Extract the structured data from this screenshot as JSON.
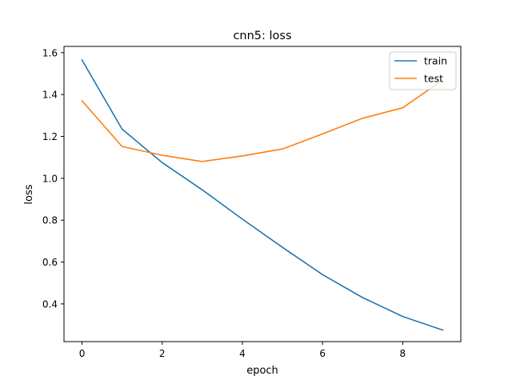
{
  "chart_data": {
    "type": "line",
    "title": "cnn5: loss",
    "xlabel": "epoch",
    "ylabel": "loss",
    "xlim": [
      -0.45,
      9.45
    ],
    "ylim": [
      0.22,
      1.63
    ],
    "xticks": [
      0,
      2,
      4,
      6,
      8
    ],
    "xtick_labels": [
      "0",
      "2",
      "4",
      "6",
      "8"
    ],
    "yticks": [
      0.4,
      0.6,
      0.8,
      1.0,
      1.2,
      1.4,
      1.6
    ],
    "ytick_labels": [
      "0.4",
      "0.6",
      "0.8",
      "1.0",
      "1.2",
      "1.4",
      "1.6"
    ],
    "grid": false,
    "legend_position": "top-right",
    "x": [
      0,
      1,
      2,
      3,
      4,
      5,
      6,
      7,
      8,
      9
    ],
    "series": [
      {
        "name": "train",
        "color": "#1f77b4",
        "values": [
          1.565,
          1.235,
          1.075,
          0.945,
          0.805,
          0.67,
          0.54,
          0.43,
          0.34,
          0.275
        ]
      },
      {
        "name": "test",
        "color": "#ff7f0e",
        "values": [
          1.37,
          1.152,
          1.11,
          1.08,
          1.107,
          1.14,
          1.212,
          1.287,
          1.337,
          1.47
        ]
      }
    ]
  }
}
